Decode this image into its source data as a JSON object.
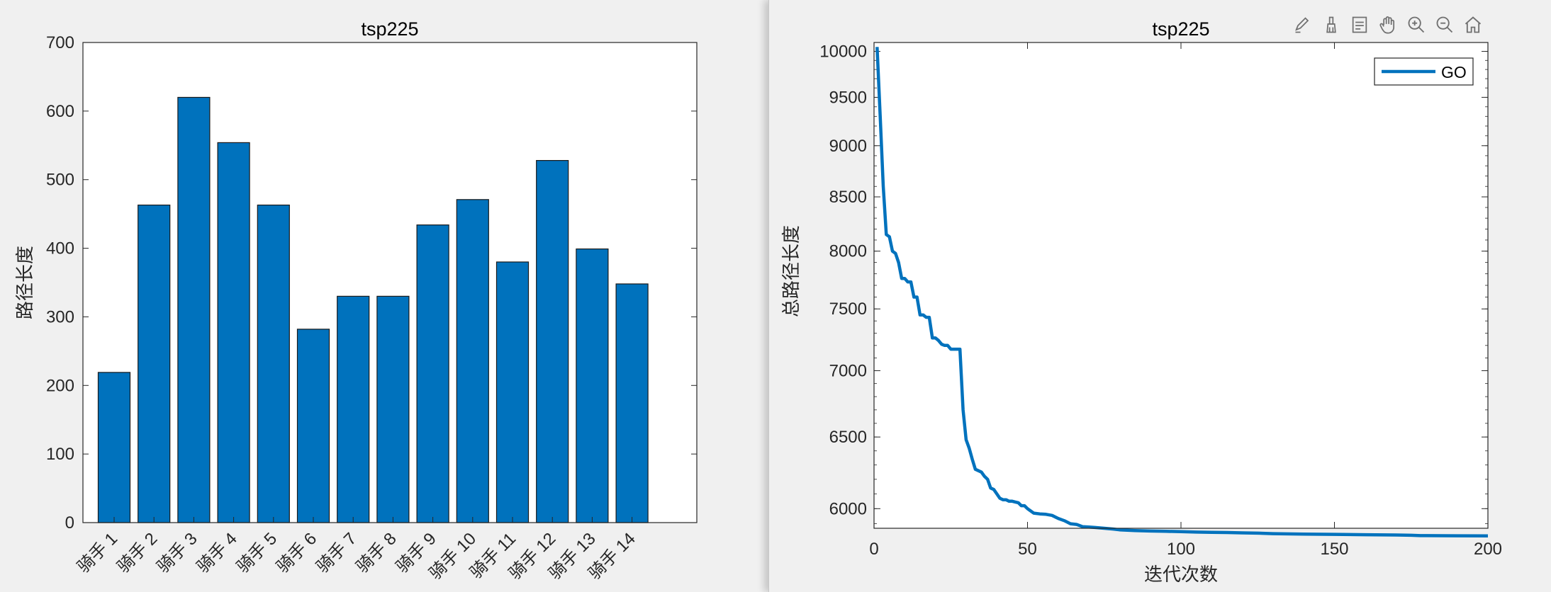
{
  "colors": {
    "bar": "#0072bd",
    "line": "#0072bd",
    "axis": "#262626",
    "plotbg": "#ffffff",
    "figbg": "#f0f0f0"
  },
  "toolbar": {
    "icons": [
      "edit-icon",
      "brush-icon",
      "legend-icon",
      "pan-hand-icon",
      "zoom-in-icon",
      "zoom-out-icon",
      "home-icon"
    ]
  },
  "chart_data": [
    {
      "type": "bar",
      "title": "tsp225",
      "xlabel": "",
      "ylabel": "路径长度",
      "categories": [
        "骑手 1",
        "骑手 2",
        "骑手 3",
        "骑手 4",
        "骑手 5",
        "骑手 6",
        "骑手 7",
        "骑手 8",
        "骑手 9",
        "骑手 10",
        "骑手 11",
        "骑手 12",
        "骑手 13",
        "骑手 14"
      ],
      "values": [
        219,
        463,
        620,
        554,
        463,
        282,
        330,
        330,
        434,
        471,
        380,
        528,
        399,
        348
      ],
      "ylim": [
        0,
        700
      ],
      "yticks": [
        0,
        100,
        200,
        300,
        400,
        500,
        600,
        700
      ],
      "ytick_labels": [
        "0",
        "100",
        "200",
        "300",
        "400",
        "500",
        "600",
        "700"
      ],
      "grid": false
    },
    {
      "type": "line",
      "title": "tsp225",
      "xlabel": "迭代次数",
      "ylabel": "总路径长度",
      "yscale": "log",
      "xlim": [
        0,
        200
      ],
      "ylim": [
        5870,
        10100
      ],
      "xticks": [
        0,
        50,
        100,
        150,
        200
      ],
      "xtick_labels": [
        "0",
        "50",
        "100",
        "150",
        "200"
      ],
      "yticks": [
        6000,
        6500,
        7000,
        7500,
        8000,
        8500,
        9000,
        9500,
        10000
      ],
      "ytick_labels": [
        "6000",
        "6500",
        "7000",
        "7500",
        "8000",
        "8500",
        "9000",
        "9500",
        "10000"
      ],
      "grid": false,
      "legend_position": "top-right",
      "series": [
        {
          "name": "GO",
          "x": [
            1,
            2,
            3,
            4,
            5,
            6,
            7,
            8,
            9,
            10,
            11,
            12,
            13,
            14,
            15,
            16,
            17,
            18,
            19,
            20,
            21,
            22,
            23,
            24,
            25,
            26,
            27,
            28,
            29,
            30,
            31,
            32,
            33,
            34,
            35,
            36,
            37,
            38,
            39,
            40,
            41,
            42,
            43,
            44,
            45,
            46,
            47,
            48,
            49,
            50,
            52,
            54,
            56,
            58,
            60,
            62,
            64,
            66,
            68,
            70,
            72,
            75,
            78,
            80,
            85,
            90,
            95,
            100,
            105,
            110,
            115,
            120,
            125,
            130,
            140,
            150,
            160,
            170,
            175,
            178,
            180,
            190,
            200
          ],
          "y": [
            10050,
            9300,
            8600,
            8150,
            8130,
            8000,
            7980,
            7900,
            7760,
            7760,
            7730,
            7730,
            7600,
            7600,
            7450,
            7450,
            7430,
            7430,
            7260,
            7260,
            7240,
            7210,
            7200,
            7200,
            7170,
            7170,
            7170,
            7170,
            6700,
            6480,
            6420,
            6340,
            6270,
            6260,
            6250,
            6220,
            6200,
            6140,
            6130,
            6100,
            6070,
            6060,
            6060,
            6050,
            6050,
            6045,
            6040,
            6020,
            6020,
            6000,
            5970,
            5965,
            5962,
            5955,
            5935,
            5920,
            5900,
            5895,
            5880,
            5878,
            5875,
            5870,
            5865,
            5860,
            5855,
            5852,
            5850,
            5848,
            5845,
            5843,
            5842,
            5840,
            5838,
            5835,
            5832,
            5830,
            5828,
            5826,
            5824,
            5822,
            5822,
            5821,
            5820
          ]
        }
      ]
    }
  ]
}
